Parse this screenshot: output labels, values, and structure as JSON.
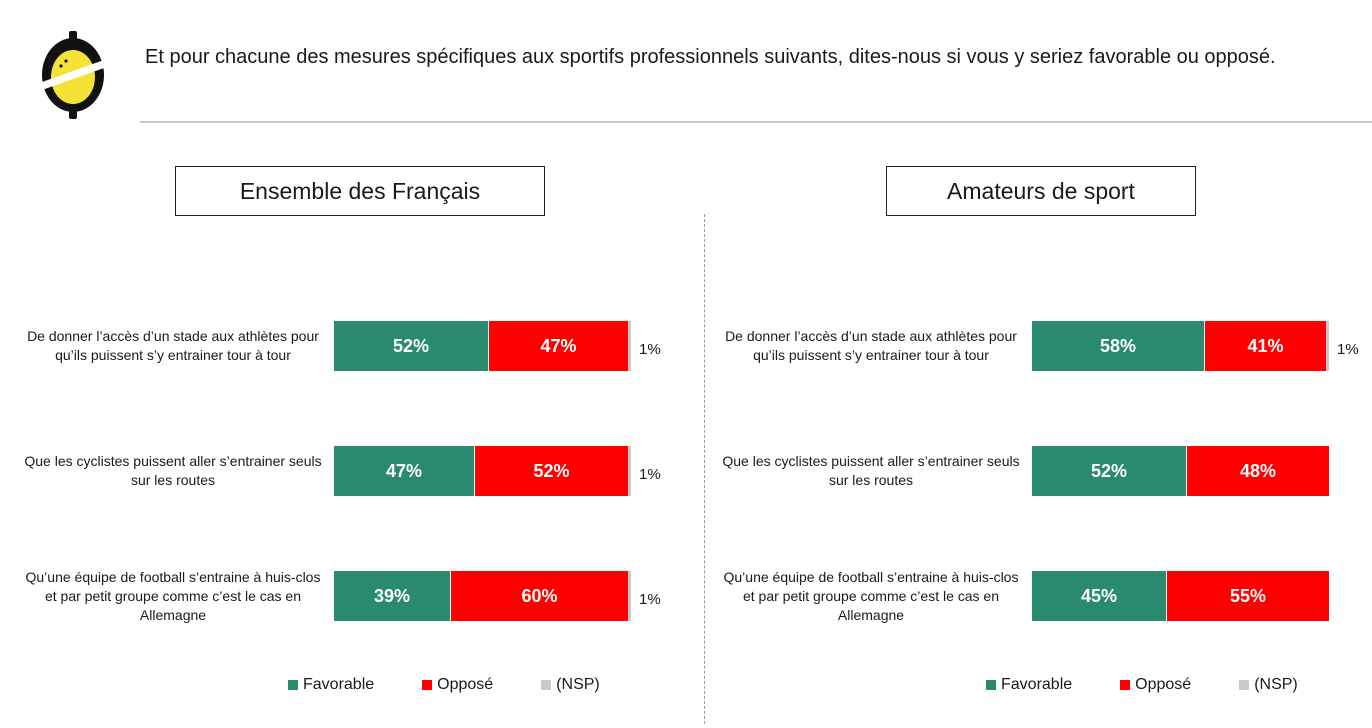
{
  "header": {
    "question": "Et pour chacune des mesures spécifiques aux sportifs professionnels suivants, dites-nous si vous y seriez favorable ou opposé."
  },
  "colors": {
    "favorable": "#2a8a6f",
    "oppose": "#ff0000",
    "nsp": "#c9c9c9",
    "logo_dark": "#111111",
    "logo_yellow": "#f6e135"
  },
  "chart_data": [
    {
      "type": "bar",
      "orientation": "horizontal",
      "stacked": true,
      "title": "Ensemble des Français",
      "categories": [
        "De donner l’accès d’un stade aux athlètes pour qu’ils puissent s’y entrainer tour à tour",
        "Que les cyclistes puissent aller s’entrainer seuls sur les routes",
        "Qu’une équipe de football s’entraine à huis-clos et par petit groupe comme c’est le cas en Allemagne"
      ],
      "series": [
        {
          "name": "Favorable",
          "values": [
            52,
            47,
            39
          ],
          "labels": [
            "52%",
            "47%",
            "39%"
          ]
        },
        {
          "name": "Opposé",
          "values": [
            47,
            52,
            60
          ],
          "labels": [
            "47%",
            "52%",
            "60%"
          ]
        },
        {
          "name": "(NSP)",
          "values": [
            1,
            1,
            1
          ],
          "labels": [
            "1%",
            "1%",
            "1%"
          ]
        }
      ],
      "legend": [
        "Favorable",
        "Opposé",
        "(NSP)"
      ],
      "legend_position": "bottom",
      "xlim": [
        0,
        100
      ]
    },
    {
      "type": "bar",
      "orientation": "horizontal",
      "stacked": true,
      "title": "Amateurs de sport",
      "categories": [
        "De donner l’accès d’un stade aux athlètes pour qu’ils puissent s’y entrainer tour à tour",
        "Que les cyclistes puissent aller s’entrainer seuls sur les routes",
        "Qu’une équipe de football s’entraine à huis-clos et par petit groupe comme c’est le cas en Allemagne"
      ],
      "series": [
        {
          "name": "Favorable",
          "values": [
            58,
            52,
            45
          ],
          "labels": [
            "58%",
            "52%",
            "45%"
          ]
        },
        {
          "name": "Opposé",
          "values": [
            41,
            48,
            55
          ],
          "labels": [
            "41%",
            "48%",
            "55%"
          ]
        },
        {
          "name": "(NSP)",
          "values": [
            1,
            0,
            0
          ],
          "labels": [
            "1%",
            "",
            ""
          ]
        }
      ],
      "legend": [
        "Favorable",
        "Opposé",
        "(NSP)"
      ],
      "legend_position": "bottom",
      "xlim": [
        0,
        100
      ]
    }
  ]
}
